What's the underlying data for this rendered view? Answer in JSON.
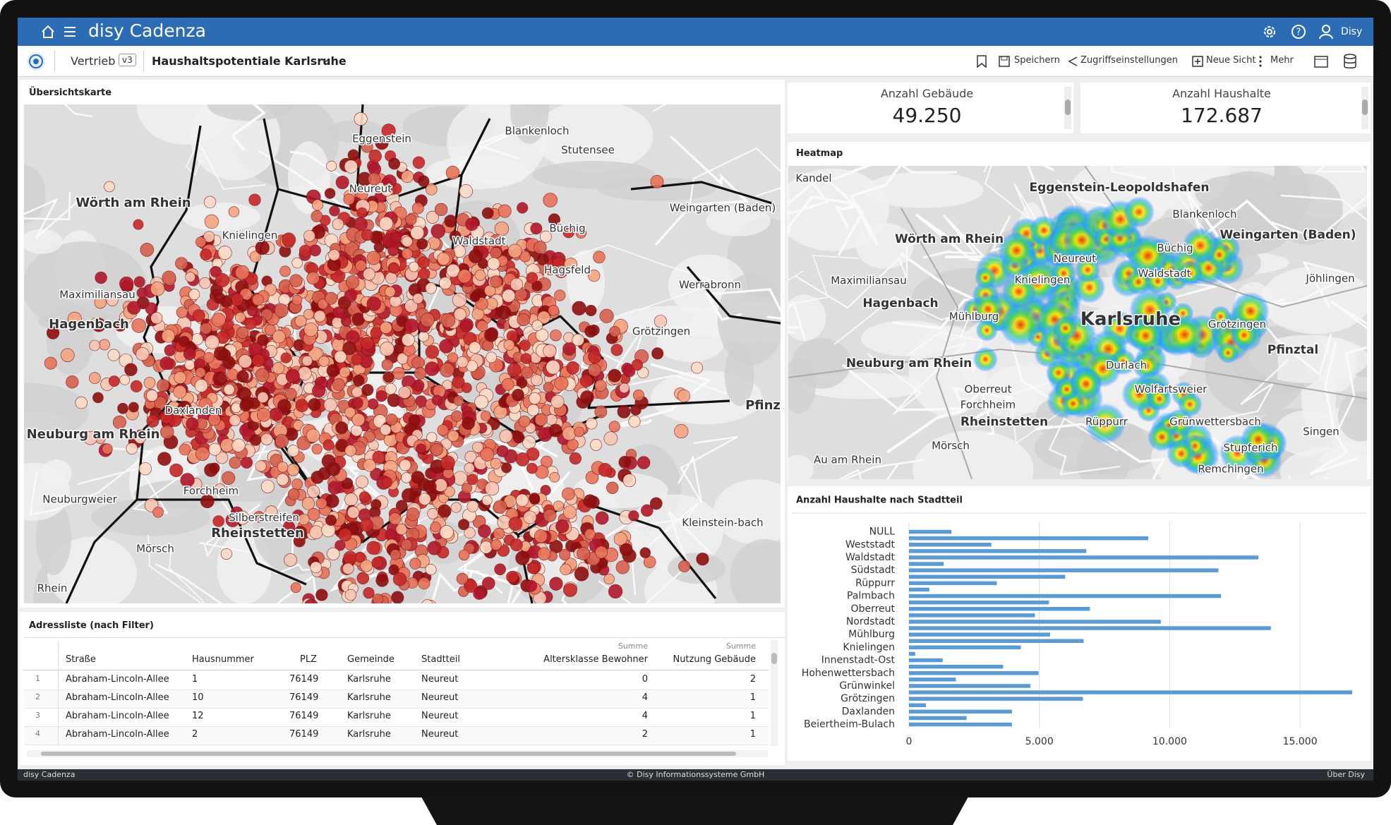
{
  "header": {
    "app_name": "disy Cadenza",
    "user": "Disy"
  },
  "toolbar": {
    "workspace": "Vertrieb",
    "version": "v3",
    "view_title": "Haushaltspotentiale Karlsruhe",
    "actions": [
      "Speichern",
      "Zugriffseinstellungen",
      "Neue Sicht",
      "Mehr"
    ]
  },
  "overview_map": {
    "title": "Übersichtskarte",
    "labels": [
      "Eggenstein",
      "Blankenloch",
      "Stutensee",
      "Wörth am Rhein",
      "Neureut",
      "Knielingen",
      "Waldstadt",
      "Büchig",
      "Weingarten (Baden)",
      "Hagsfeld",
      "Maximiliansau",
      "Werrabronn",
      "Hagenbach",
      "Grötzingen",
      "Daxlanden",
      "Neuburg am Rhein",
      "Pfinz",
      "Forchheim",
      "Silberstreifen",
      "Rheinstetten",
      "Neuburgweier",
      "Mörsch",
      "Kleinstein-bach",
      "Rhein"
    ]
  },
  "kpis": [
    {
      "label": "Anzahl Gebäude",
      "value": "49.250"
    },
    {
      "label": "Anzahl Haushalte",
      "value": "172.687"
    }
  ],
  "heatmap": {
    "title": "Heatmap",
    "labels": [
      "Kandel",
      "Eggenstein-Leopoldshafen",
      "Blankenloch",
      "Wörth am Rhein",
      "Weingarten (Baden)",
      "Neureut",
      "Büchig",
      "Maximiliansau",
      "Knielingen",
      "Waldstadt",
      "Jöhlingen",
      "Hagenbach",
      "Mühlburg",
      "Karlsruhe",
      "Grötzingen",
      "Neuburg am Rhein",
      "Durlach",
      "Pfinztal",
      "Oberreut",
      "Forchheim",
      "Rheinstetten",
      "Rüppurr",
      "Wolfartsweier",
      "Grünwettersbach",
      "Mörsch",
      "Stupferich",
      "Singen",
      "Au am Rhein",
      "Remchingen"
    ]
  },
  "chart_data": {
    "type": "bar",
    "orientation": "horizontal",
    "title": "Anzahl Haushalte nach Stadtteil",
    "categories": [
      "NULL",
      null,
      "Weststadt",
      null,
      "Waldstadt",
      null,
      "Südstadt",
      null,
      "Rüppurr",
      null,
      "Palmbach",
      null,
      "Oberreut",
      null,
      "Nordstadt",
      null,
      "Mühlburg",
      null,
      "Knielingen",
      null,
      "Innenstadt-Ost",
      null,
      "Hohenwettersbach",
      null,
      "Grünwinkel",
      null,
      "Grötzingen",
      null,
      "Daxlanden",
      null,
      "Beiertheim-Bulach"
    ],
    "values": [
      1630,
      9180,
      3160,
      6800,
      13400,
      1330,
      11870,
      5990,
      3370,
      780,
      11970,
      5370,
      6940,
      4830,
      9660,
      13880,
      5410,
      6700,
      4290,
      240,
      1290,
      3610,
      4970,
      1800,
      4660,
      17000,
      6670,
      650,
      3950,
      2210,
      3950
    ],
    "color": "#5b9bd5",
    "xlim": [
      0,
      17000
    ],
    "xticks": [
      0,
      {
        "value": 5000,
        "label": "5.000"
      },
      {
        "value": 10000,
        "label": "10.000"
      },
      {
        "value": 15000,
        "label": "15.000"
      }
    ],
    "grid": true
  },
  "address_table": {
    "title": "Adressliste (nach Filter)",
    "aggregate_label": "Summe",
    "columns": [
      "Straße",
      "Hausnummer",
      "PLZ",
      "Gemeinde",
      "Stadtteil",
      "Altersklasse Bewohner",
      "Nutzung Gebäude"
    ],
    "rows": [
      [
        1,
        "Abraham-Lincoln-Allee",
        1,
        76149,
        "Karlsruhe",
        "Neureut",
        0,
        2
      ],
      [
        2,
        "Abraham-Lincoln-Allee",
        10,
        76149,
        "Karlsruhe",
        "Neureut",
        4,
        1
      ],
      [
        3,
        "Abraham-Lincoln-Allee",
        12,
        76149,
        "Karlsruhe",
        "Neureut",
        4,
        1
      ],
      [
        4,
        "Abraham-Lincoln-Allee",
        2,
        76149,
        "Karlsruhe",
        "Neureut",
        2,
        1
      ]
    ]
  },
  "footer": {
    "left": "disy Cadenza",
    "center": "© Disy Informationssysteme GmbH",
    "right": "Über Disy"
  }
}
